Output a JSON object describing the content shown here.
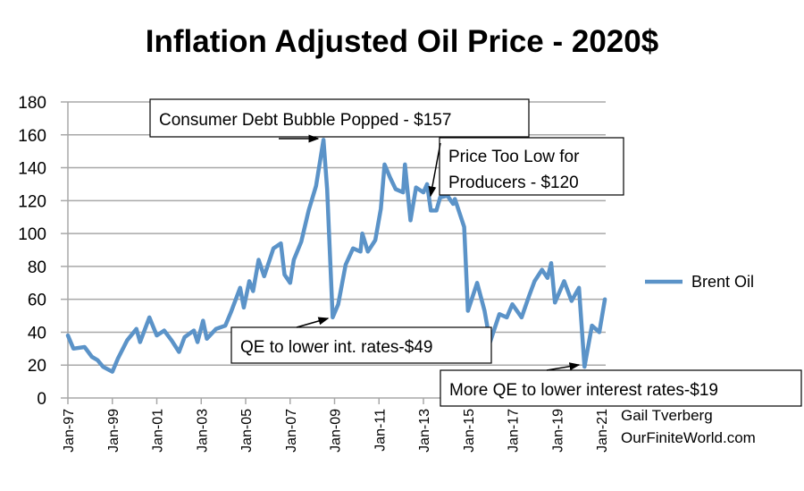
{
  "chart_data": {
    "type": "line",
    "title": "Inflation Adjusted Oil Price - 2020$",
    "xlabel": "",
    "ylabel": "",
    "ylim": [
      0,
      180
    ],
    "yticks": [
      0,
      20,
      40,
      60,
      80,
      100,
      120,
      140,
      160,
      180
    ],
    "xlim": [
      "1997-01",
      "2021-01"
    ],
    "xtick_labels": [
      "Jan-97",
      "Jan-99",
      "Jan-01",
      "Jan-03",
      "Jan-05",
      "Jan-07",
      "Jan-09",
      "Jan-11",
      "Jan-13",
      "Jan-15",
      "Jan-17",
      "Jan-19",
      "Jan-21"
    ],
    "grid": "horizontal",
    "legend_position": "right",
    "series": [
      {
        "name": "Brent Oil",
        "color": "#5b93c8",
        "points": [
          [
            "1997-01",
            38
          ],
          [
            "1997-04",
            30
          ],
          [
            "1997-10",
            31
          ],
          [
            "1998-02",
            25
          ],
          [
            "1998-05",
            23
          ],
          [
            "1998-08",
            19
          ],
          [
            "1999-01",
            16
          ],
          [
            "1999-04",
            24
          ],
          [
            "1999-09",
            35
          ],
          [
            "2000-02",
            42
          ],
          [
            "2000-04",
            34
          ],
          [
            "2000-09",
            49
          ],
          [
            "2001-01",
            38
          ],
          [
            "2001-05",
            41
          ],
          [
            "2001-09",
            35
          ],
          [
            "2002-01",
            28
          ],
          [
            "2002-04",
            37
          ],
          [
            "2002-09",
            41
          ],
          [
            "2002-11",
            34
          ],
          [
            "2003-02",
            47
          ],
          [
            "2003-04",
            36
          ],
          [
            "2003-09",
            42
          ],
          [
            "2004-02",
            44
          ],
          [
            "2004-05",
            52
          ],
          [
            "2004-10",
            67
          ],
          [
            "2004-12",
            55
          ],
          [
            "2005-03",
            71
          ],
          [
            "2005-05",
            65
          ],
          [
            "2005-08",
            84
          ],
          [
            "2005-11",
            74
          ],
          [
            "2006-04",
            91
          ],
          [
            "2006-08",
            94
          ],
          [
            "2006-10",
            75
          ],
          [
            "2007-01",
            70
          ],
          [
            "2007-03",
            84
          ],
          [
            "2007-07",
            95
          ],
          [
            "2007-11",
            114
          ],
          [
            "2008-03",
            129
          ],
          [
            "2008-07",
            157
          ],
          [
            "2008-09",
            127
          ],
          [
            "2008-12",
            49
          ],
          [
            "2009-03",
            57
          ],
          [
            "2009-07",
            81
          ],
          [
            "2009-11",
            91
          ],
          [
            "2010-03",
            89
          ],
          [
            "2010-04",
            100
          ],
          [
            "2010-07",
            89
          ],
          [
            "2010-11",
            96
          ],
          [
            "2011-02",
            115
          ],
          [
            "2011-04",
            142
          ],
          [
            "2011-07",
            134
          ],
          [
            "2011-10",
            127
          ],
          [
            "2012-02",
            125
          ],
          [
            "2012-03",
            142
          ],
          [
            "2012-06",
            108
          ],
          [
            "2012-09",
            128
          ],
          [
            "2013-01",
            125
          ],
          [
            "2013-03",
            130
          ],
          [
            "2013-05",
            114
          ],
          [
            "2013-08",
            114
          ],
          [
            "2013-10",
            122
          ],
          [
            "2014-02",
            123
          ],
          [
            "2014-05",
            118
          ],
          [
            "2014-06",
            121
          ],
          [
            "2014-11",
            104
          ],
          [
            "2015-01",
            53
          ],
          [
            "2015-06",
            70
          ],
          [
            "2015-10",
            53
          ],
          [
            "2016-01",
            34
          ],
          [
            "2016-06",
            51
          ],
          [
            "2016-10",
            49
          ],
          [
            "2017-01",
            57
          ],
          [
            "2017-06",
            49
          ],
          [
            "2017-10",
            62
          ],
          [
            "2018-01",
            71
          ],
          [
            "2018-05",
            78
          ],
          [
            "2018-08",
            73
          ],
          [
            "2018-10",
            82
          ],
          [
            "2018-12",
            58
          ],
          [
            "2019-05",
            71
          ],
          [
            "2019-09",
            59
          ],
          [
            "2020-01",
            67
          ],
          [
            "2020-04",
            19
          ],
          [
            "2020-08",
            44
          ],
          [
            "2020-12",
            40
          ],
          [
            "2021-03",
            60
          ]
        ]
      }
    ],
    "annotations": [
      {
        "text": "Consumer Debt Bubble Popped - $157",
        "x": "2008-07",
        "y": 157
      },
      {
        "text_lines": [
          "Price Too Low for",
          "Producers - $120"
        ],
        "x": "2013-05",
        "y": 120
      },
      {
        "text": "QE to lower int. rates-$49",
        "x": "2008-12",
        "y": 49
      },
      {
        "text": "More QE to lower interest rates-$19",
        "x": "2020-04",
        "y": 19
      }
    ]
  },
  "credits": [
    "Gail Tverberg",
    "OurFiniteWorld.com"
  ]
}
